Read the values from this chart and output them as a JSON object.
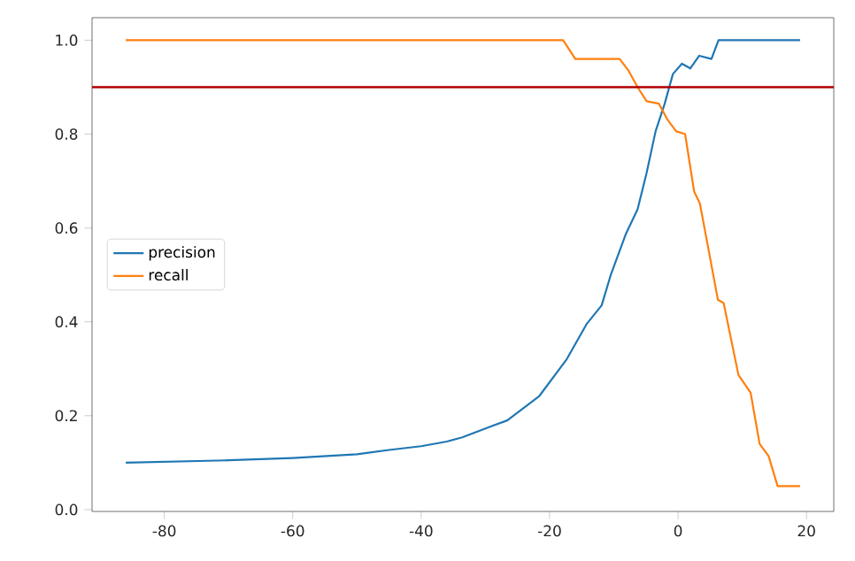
{
  "chart_data": {
    "type": "line",
    "legend": "center left",
    "xlim": [
      -91.25,
      24.25
    ],
    "ylim": [
      -0.004,
      1.048
    ],
    "xticks": [
      -80,
      -60,
      -40,
      -20,
      0,
      20
    ],
    "yticks": [
      {
        "value": 0,
        "label": "0.0"
      },
      0.2,
      0.4,
      0.6,
      0.8,
      {
        "value": 1,
        "label": "1.0"
      }
    ],
    "series": [
      {
        "name": "precision",
        "color": "#1f77b4",
        "x": [
          -86,
          -70,
          -60,
          -50,
          -45,
          -40,
          -36,
          -33.6,
          -29,
          -26.6,
          -21.6,
          -17.4,
          -14.2,
          -11.9,
          -10.5,
          -8.1,
          -6.3,
          -4.9,
          -3.5,
          -2.1,
          -0.8,
          0.6,
          1.9,
          3.3,
          5.2,
          6.3,
          19
        ],
        "values": [
          0.1,
          0.105,
          0.11,
          0.118,
          0.127,
          0.135,
          0.145,
          0.154,
          0.178,
          0.19,
          0.242,
          0.319,
          0.396,
          0.435,
          0.499,
          0.588,
          0.64,
          0.717,
          0.806,
          0.864,
          0.928,
          0.95,
          0.94,
          0.967,
          0.96,
          1.0,
          1.0
        ]
      },
      {
        "name": "recall",
        "color": "#ff7f0e",
        "x": [
          -86,
          -17.9,
          -16,
          -9.1,
          -7.7,
          -6.3,
          -4.9,
          -3.0,
          -1.7,
          -0.3,
          1.1,
          2.5,
          3.4,
          4.8,
          6.2,
          7.1,
          9.4,
          11.3,
          12.7,
          14.1,
          15.5,
          19
        ],
        "values": [
          1.0,
          1.0,
          0.96,
          0.96,
          0.935,
          0.9,
          0.87,
          0.865,
          0.832,
          0.806,
          0.8,
          0.678,
          0.652,
          0.55,
          0.447,
          0.44,
          0.287,
          0.249,
          0.14,
          0.114,
          0.05,
          0.05
        ]
      }
    ],
    "ref_lines": [
      {
        "axis": "y",
        "value": 0.9,
        "color": "#b00000"
      }
    ]
  }
}
